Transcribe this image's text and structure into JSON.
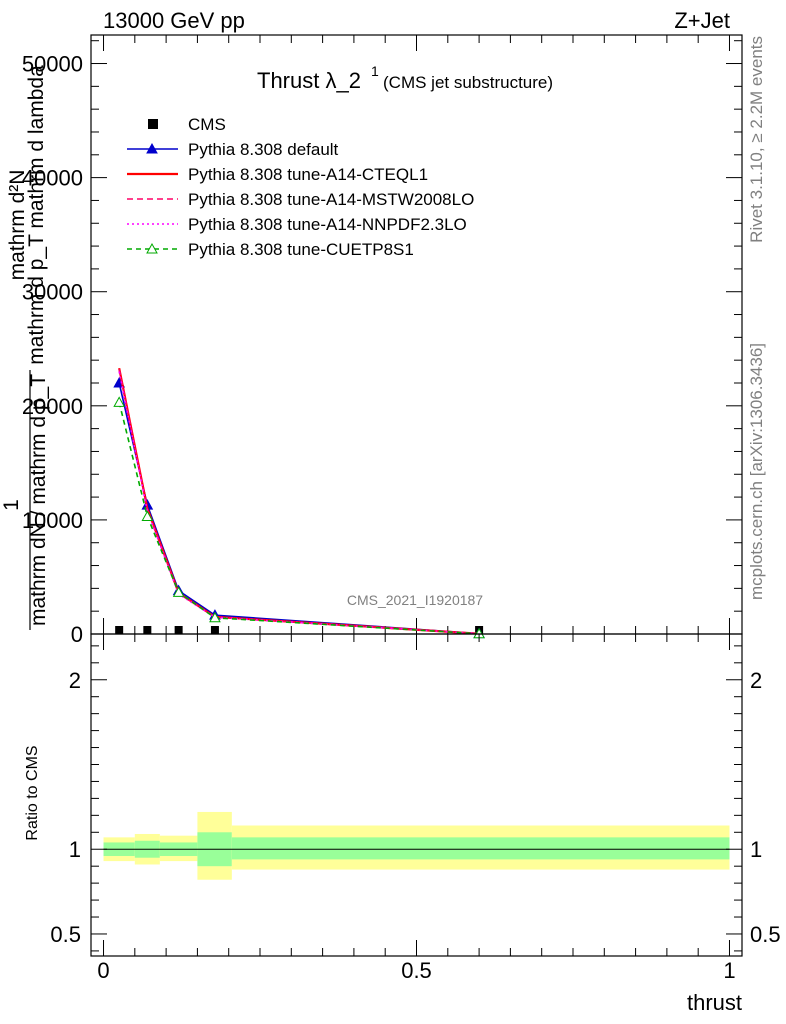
{
  "header": {
    "left": "13000 GeV pp",
    "right": "Z+Jet"
  },
  "side": {
    "rivet": "Rivet 3.1.10, ≥ 2.2M events",
    "mcplots": "mcplots.cern.ch [arXiv:1306.3436]"
  },
  "chart_data": [
    {
      "type": "line",
      "title": "Thrust λ_2",
      "title_sup": "1",
      "subtitle": "(CMS jet substructure)",
      "ylabel_numerator": "mathrm d²N",
      "ylabel_numerator_2": "mathrm d p_T mathrm d lambda",
      "ylabel_fraction_top": "1",
      "ylabel_fraction_bottom": "mathrm dN / mathrm d p_T",
      "watermark": "CMS_2021_I1920187",
      "xlim": [
        -0.02,
        1.02
      ],
      "ylim": [
        0,
        52500
      ],
      "yticks": [
        0,
        10000,
        20000,
        30000,
        40000,
        50000
      ],
      "ytick_labels": [
        "0",
        "10000",
        "20000",
        "30000",
        "40000",
        "50000"
      ],
      "grid": false,
      "legend_placement": "top-left",
      "x": [
        0.025,
        0.07,
        0.12,
        0.178,
        0.6
      ],
      "series": [
        {
          "name": "CMS",
          "color": "#000000",
          "style": "marker-square",
          "values": [
            0,
            0,
            0,
            0,
            0
          ]
        },
        {
          "name": "Pythia 8.308 default",
          "color": "#0000cc",
          "style": "solid-triangle",
          "values": [
            22000,
            11300,
            3800,
            1650,
            30
          ]
        },
        {
          "name": "Pythia 8.308 tune-A14-CTEQL1",
          "color": "#ff0000",
          "style": "solid",
          "values": [
            23300,
            11000,
            3600,
            1500,
            25
          ]
        },
        {
          "name": "Pythia 8.308 tune-A14-MSTW2008LO",
          "color": "#ff0066",
          "style": "dashed",
          "values": [
            23200,
            10900,
            3550,
            1480,
            25
          ]
        },
        {
          "name": "Pythia 8.308 tune-A14-NNPDF2.3LO",
          "color": "#ff00ff",
          "style": "dotted",
          "values": [
            23000,
            10800,
            3500,
            1470,
            25
          ]
        },
        {
          "name": "Pythia 8.308 tune-CUETP8S1",
          "color": "#00aa00",
          "style": "dashed-open-triangle",
          "values": [
            20300,
            10300,
            3650,
            1420,
            20
          ]
        }
      ]
    },
    {
      "type": "area",
      "ylabel": "Ratio to CMS",
      "xlabel": "thrust",
      "xlim": [
        -0.02,
        1.02
      ],
      "ylim": [
        0.37,
        2.27
      ],
      "yticks": [
        0.5,
        1,
        2
      ],
      "ytick_labels": [
        "0.5",
        "1",
        "2"
      ],
      "xticks": [
        0,
        0.5,
        1
      ],
      "xtick_labels": [
        "0",
        "0.5",
        "1"
      ],
      "reference": 1,
      "bands": [
        {
          "x0": 0.0,
          "x1": 0.05,
          "outer": [
            0.93,
            1.07
          ],
          "inner": [
            0.96,
            1.04
          ]
        },
        {
          "x0": 0.05,
          "x1": 0.09,
          "outer": [
            0.91,
            1.09
          ],
          "inner": [
            0.95,
            1.05
          ]
        },
        {
          "x0": 0.09,
          "x1": 0.15,
          "outer": [
            0.93,
            1.08
          ],
          "inner": [
            0.96,
            1.04
          ]
        },
        {
          "x0": 0.15,
          "x1": 0.205,
          "outer": [
            0.82,
            1.22
          ],
          "inner": [
            0.9,
            1.1
          ]
        },
        {
          "x0": 0.205,
          "x1": 1.0,
          "outer": [
            0.88,
            1.14
          ],
          "inner": [
            0.94,
            1.07
          ]
        }
      ],
      "band_colors": {
        "outer": "#ffff99",
        "inner": "#99ff99"
      }
    }
  ]
}
